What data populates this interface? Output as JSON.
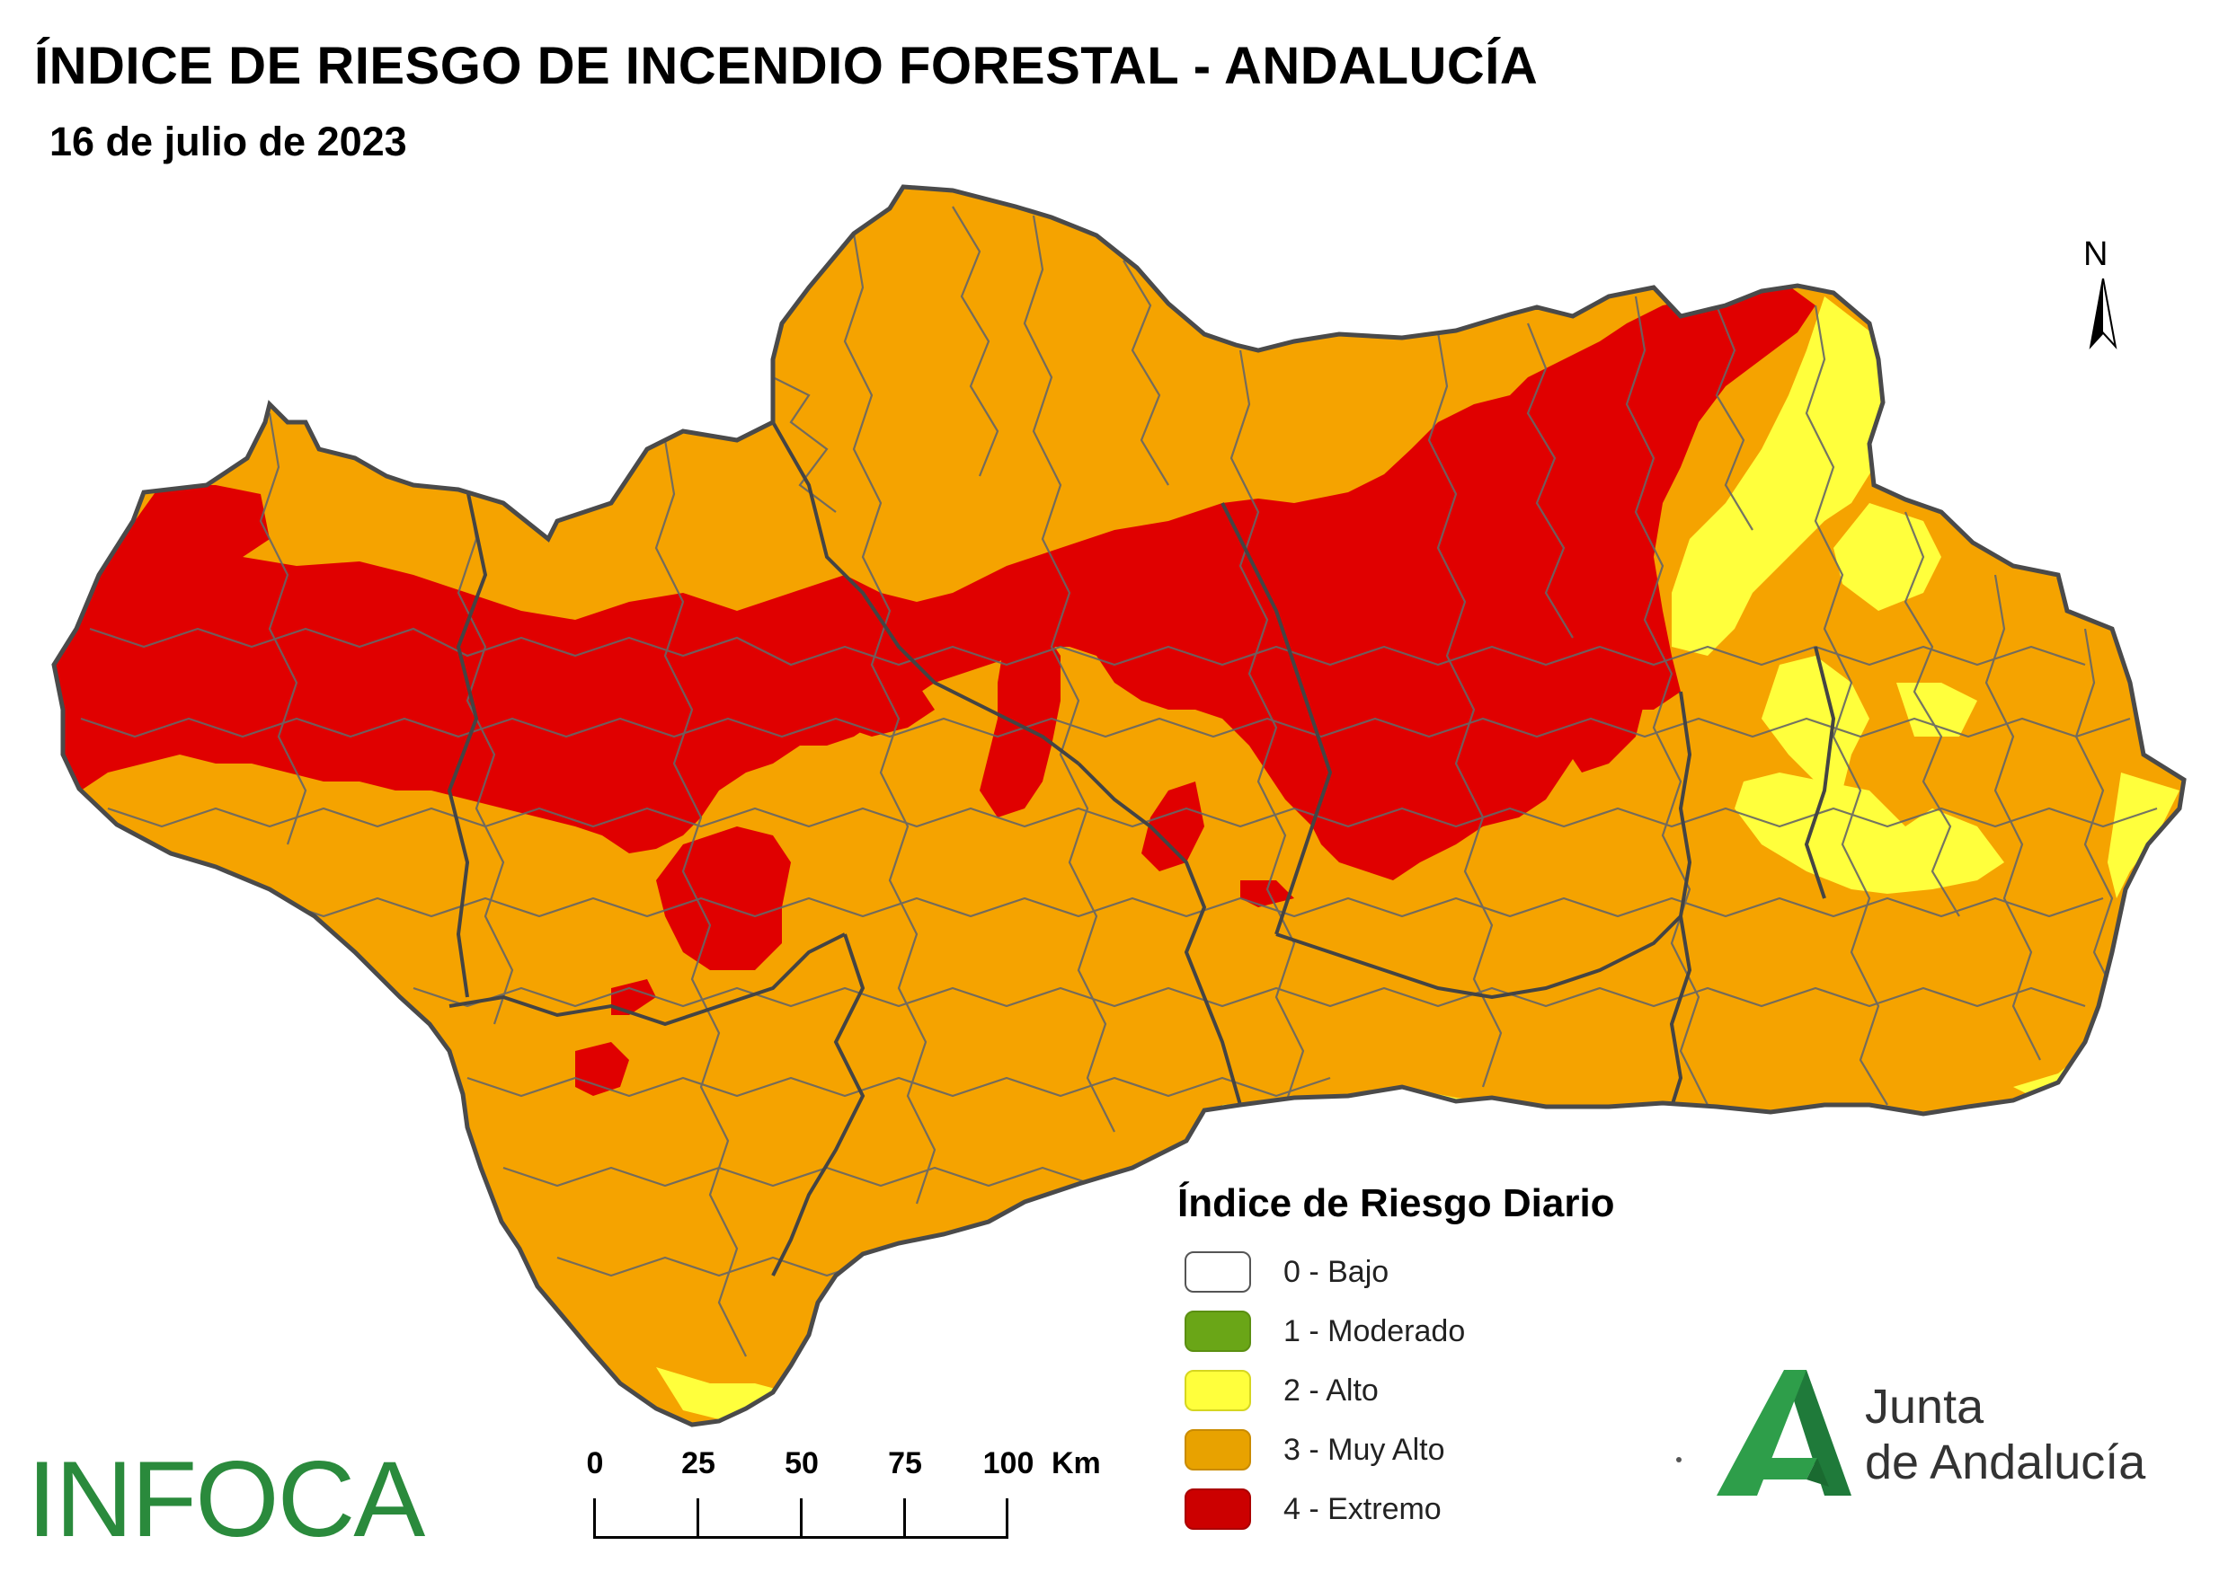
{
  "header": {
    "title": "ÍNDICE DE RIESGO DE INCENDIO FORESTAL - ANDALUCÍA",
    "date": "16 de julio de 2023"
  },
  "north_arrow": {
    "label": "N"
  },
  "legend": {
    "title": "Índice de Riesgo Diario",
    "items": [
      {
        "label": "0 - Bajo",
        "color": "#ffffff"
      },
      {
        "label": "1 - Moderado",
        "color": "#6aa617"
      },
      {
        "label": "2 - Alto",
        "color": "#ffff3c"
      },
      {
        "label": "3 - Muy Alto",
        "color": "#f5a300"
      },
      {
        "label": "4 - Extremo",
        "color": "#e00000"
      }
    ]
  },
  "scale_bar": {
    "ticks": [
      "0",
      "25",
      "50",
      "75",
      "100"
    ],
    "unit": "Km"
  },
  "logos": {
    "infoca": "INFOCA",
    "junta_line1": "Junta",
    "junta_line2": "de Andalucía"
  },
  "colors": {
    "muy_alto": "#f5a300",
    "extremo": "#e00000",
    "alto": "#ffff3c",
    "border": "#555555",
    "brand_green": "#2a8a3c"
  }
}
